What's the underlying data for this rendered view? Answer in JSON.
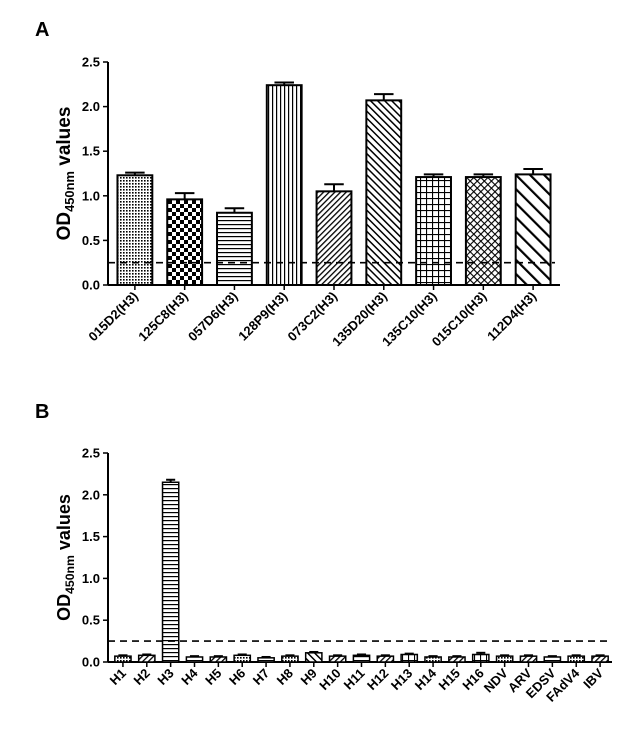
{
  "chart_data": [
    {
      "panel": "A",
      "type": "bar",
      "ylabel": {
        "main": "OD",
        "sub": "450nm",
        "rest": " values"
      },
      "ylim": [
        0,
        2.5
      ],
      "yticks": [
        "0.0",
        "0.5",
        "1.0",
        "1.5",
        "2.0",
        "2.5"
      ],
      "ytick_values": [
        0,
        0.5,
        1.0,
        1.5,
        2.0,
        2.5
      ],
      "cutoff": 0.25,
      "categories": [
        "015D2(H3)",
        "125C8(H3)",
        "057D6(H3)",
        "128P9(H3)",
        "073C2(H3)",
        "135D20(H3)",
        "135C10(H3)",
        "015C10(H3)",
        "112D4(H3)"
      ],
      "values": [
        1.23,
        0.96,
        0.81,
        2.24,
        1.05,
        2.07,
        1.21,
        1.21,
        1.24
      ],
      "errors": [
        0.03,
        0.07,
        0.05,
        0.03,
        0.08,
        0.07,
        0.03,
        0.03,
        0.06
      ],
      "patterns": [
        "dots",
        "checker",
        "hlines",
        "vlines",
        "diag-dense",
        "diag-back",
        "grid",
        "crosshatch",
        "diag-wide"
      ]
    },
    {
      "panel": "B",
      "type": "bar",
      "ylabel": {
        "main": "OD",
        "sub": "450nm",
        "rest": " values"
      },
      "ylim": [
        0,
        2.5
      ],
      "yticks": [
        "0.0",
        "0.5",
        "1.0",
        "1.5",
        "2.0",
        "2.5"
      ],
      "ytick_values": [
        0,
        0.5,
        1.0,
        1.5,
        2.0,
        2.5
      ],
      "cutoff": 0.25,
      "categories": [
        "H1",
        "H2",
        "H3",
        "H4",
        "H5",
        "H6",
        "H7",
        "H8",
        "H9",
        "H10",
        "H11",
        "H12",
        "H13",
        "H14",
        "H15",
        "H16",
        "NDV",
        "ARV",
        "EDSV",
        "FAdV4",
        "IBV"
      ],
      "values": [
        0.07,
        0.08,
        2.15,
        0.06,
        0.06,
        0.08,
        0.05,
        0.07,
        0.11,
        0.07,
        0.08,
        0.07,
        0.09,
        0.06,
        0.06,
        0.09,
        0.07,
        0.07,
        0.06,
        0.07,
        0.07
      ],
      "errors": [
        0.01,
        0.01,
        0.03,
        0.01,
        0.01,
        0.01,
        0.01,
        0.01,
        0.01,
        0.01,
        0.01,
        0.01,
        0.01,
        0.01,
        0.01,
        0.02,
        0.01,
        0.01,
        0.01,
        0.01,
        0.01
      ],
      "patterns": [
        "dots",
        "diag-dense",
        "hlines",
        "hlines",
        "diag-dense",
        "dots",
        "hlines",
        "dots",
        "diag-back",
        "diag-dense",
        "hlines",
        "diag-dense",
        "grid",
        "dots",
        "diag-dense",
        "grid",
        "dots",
        "diag-dense",
        "hlines",
        "dots",
        "diag-dense"
      ]
    }
  ]
}
